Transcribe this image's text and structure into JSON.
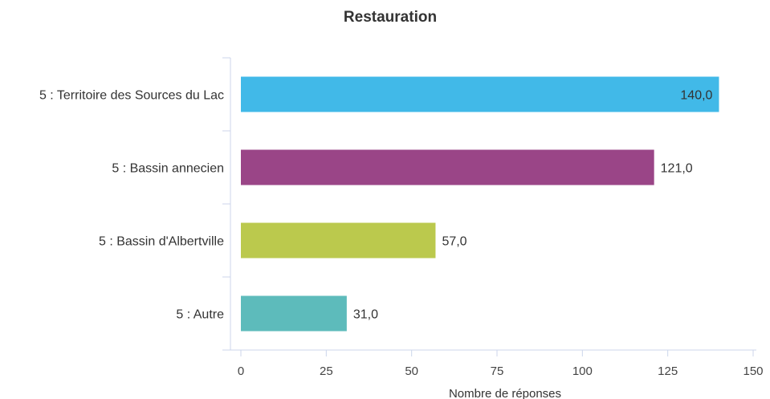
{
  "chart_data": {
    "type": "bar",
    "orientation": "horizontal",
    "title": "Restauration",
    "xlabel": "Nombre de réponses",
    "ylabel": "",
    "xlim": [
      0,
      150
    ],
    "x_ticks": [
      "0",
      "25",
      "50",
      "75",
      "100",
      "125",
      "150"
    ],
    "categories": [
      "5 : Territoire des Sources du Lac",
      "5 : Bassin annecien",
      "5 : Bassin d'Albertville",
      "5 : Autre"
    ],
    "values": [
      140,
      121,
      57,
      31
    ],
    "value_labels": [
      "140,0",
      "121,0",
      "57,0",
      "31,0"
    ],
    "colors": [
      "#41b9e8",
      "#9a4587",
      "#bbc94d",
      "#5dbbbb"
    ],
    "grid": false,
    "legend": "none"
  }
}
